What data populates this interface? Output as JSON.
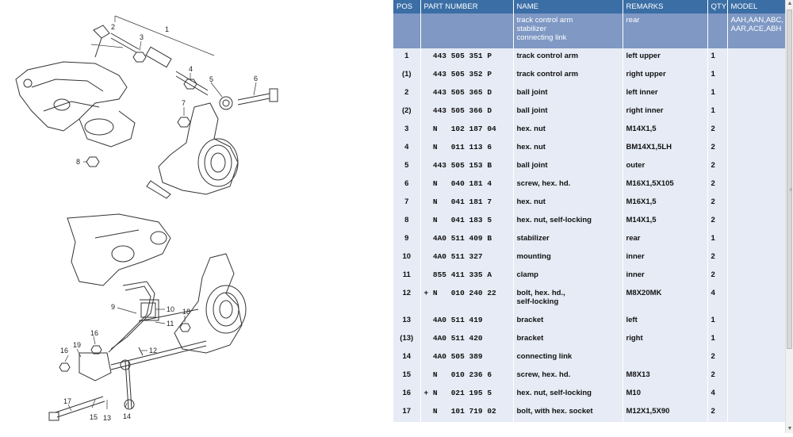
{
  "table": {
    "headers": {
      "pos": "POS",
      "part": "PART NUMBER",
      "name": "NAME",
      "remarks": "REMARKS",
      "qty": "QTY",
      "model": "MODEL"
    },
    "selected": {
      "name": [
        "track control arm",
        "stabilizer",
        "connecting link"
      ],
      "remarks": "rear",
      "model": [
        "AAH,AAN,ABC,",
        "AAR,ACE,ABH"
      ]
    },
    "rows": [
      {
        "pos": "1",
        "part": "  443 505 351 P",
        "name": "track control arm",
        "remarks": "left upper",
        "qty": "1"
      },
      {
        "pos": "(1)",
        "part": "  443 505 352 P",
        "name": "track control arm",
        "remarks": "right upper",
        "qty": "1"
      },
      {
        "pos": "2",
        "part": "  443 505 365 D",
        "name": "ball joint",
        "remarks": "left inner",
        "qty": "1"
      },
      {
        "pos": "(2)",
        "part": "  443 505 366 D",
        "name": "ball joint",
        "remarks": "right inner",
        "qty": "1"
      },
      {
        "pos": "3",
        "part": "  N   102 187 04",
        "name": "hex. nut",
        "remarks": "M14X1,5",
        "qty": "2"
      },
      {
        "pos": "4",
        "part": "  N   011 113 6",
        "name": "hex. nut",
        "remarks": "BM14X1,5LH",
        "qty": "2"
      },
      {
        "pos": "5",
        "part": "  443 505 153 B",
        "name": "ball joint",
        "remarks": "outer",
        "qty": "2"
      },
      {
        "pos": "6",
        "part": "  N   040 181 4",
        "name": "screw, hex. hd.",
        "remarks": "M16X1,5X105",
        "qty": "2"
      },
      {
        "pos": "7",
        "part": "  N   041 181 7",
        "name": "hex. nut",
        "remarks": "M16X1,5",
        "qty": "2"
      },
      {
        "pos": "8",
        "part": "  N   041 183 5",
        "name": "hex. nut, self-locking",
        "remarks": "M14X1,5",
        "qty": "2"
      },
      {
        "pos": "9",
        "part": "  4A0 511 409 B",
        "name": "stabilizer",
        "remarks": "rear",
        "qty": "1"
      },
      {
        "pos": "10",
        "part": "  4A0 511 327",
        "name": "mounting",
        "remarks": "inner",
        "qty": "2"
      },
      {
        "pos": "11",
        "part": "  855 411 335 A",
        "name": "clamp",
        "remarks": "inner",
        "qty": "2"
      },
      {
        "pos": "12",
        "part": "+ N   010 240 22",
        "name": "bolt, hex. hd.,\nself-locking",
        "remarks": "M8X20MK",
        "qty": "4",
        "tall": true
      },
      {
        "pos": "13",
        "part": "  4A0 511 419",
        "name": "bracket",
        "remarks": "left",
        "qty": "1"
      },
      {
        "pos": "(13)",
        "part": "  4A0 511 420",
        "name": "bracket",
        "remarks": "right",
        "qty": "1"
      },
      {
        "pos": "14",
        "part": "  4A0 505 389",
        "name": "connecting link",
        "remarks": "",
        "qty": "2"
      },
      {
        "pos": "15",
        "part": "  N   010 236 6",
        "name": "screw, hex. hd.",
        "remarks": "M8X13",
        "qty": "2"
      },
      {
        "pos": "16",
        "part": "+ N   021 195 5",
        "name": "hex. nut, self-locking",
        "remarks": "M10",
        "qty": "4"
      },
      {
        "pos": "17",
        "part": "  N   101 719 02",
        "name": "bolt, with hex. socket",
        "remarks": "M12X1,5X90",
        "qty": "2"
      }
    ]
  },
  "callouts": {
    "top": [
      "1",
      "2",
      "3",
      "4",
      "5",
      "6",
      "7",
      "8"
    ],
    "bottom": [
      "9",
      "10",
      "11",
      "12",
      "13",
      "14",
      "15",
      "16",
      "16",
      "17",
      "18",
      "19"
    ]
  },
  "icons": {
    "scroll_up": "triangle-up-icon",
    "scroll_down": "triangle-down-icon",
    "grip": "grip-lines-icon"
  }
}
